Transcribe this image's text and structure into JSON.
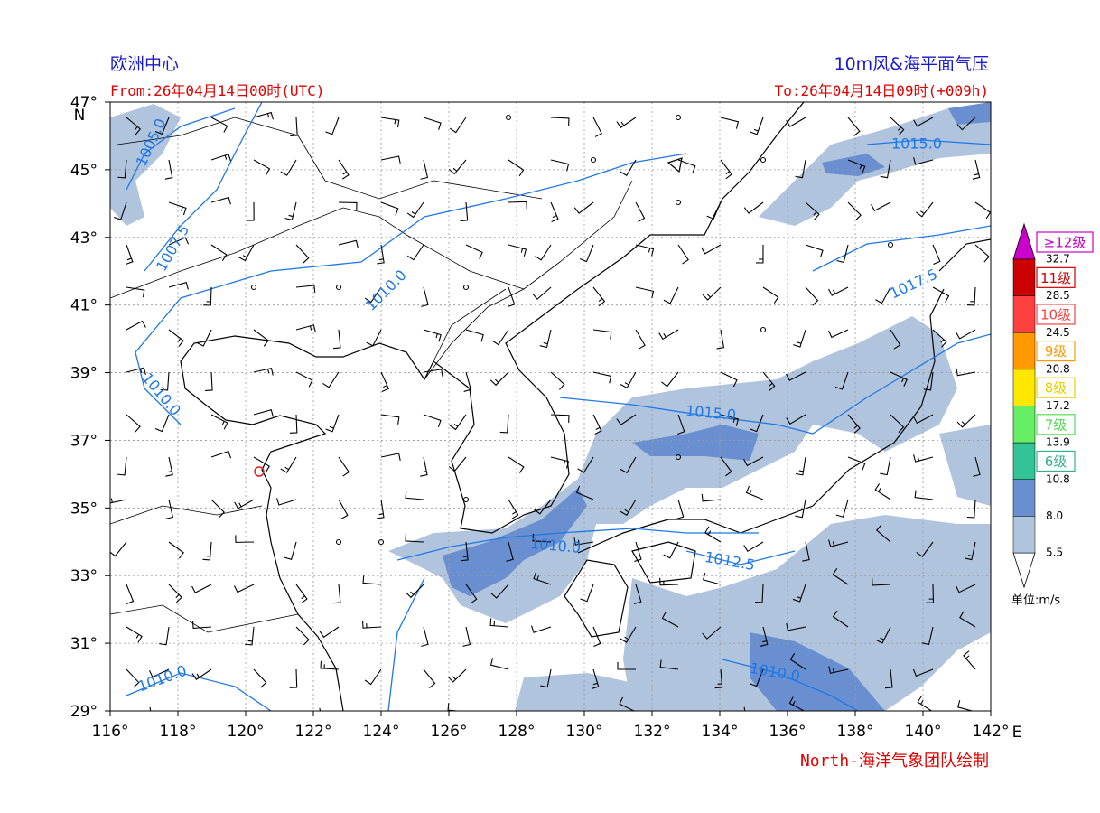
{
  "header": {
    "left_title": "欧洲中心",
    "right_title": "10m风&海平面气压",
    "from": "From:26年04月14日00时(UTC)",
    "to": "To:26年04月14日09时(+009h)"
  },
  "axes": {
    "lat_labels": [
      "47°",
      "45°",
      "43°",
      "41°",
      "39°",
      "37°",
      "35°",
      "33°",
      "31°",
      "29°"
    ],
    "lat_unit": "N",
    "lon_labels": [
      "116°",
      "118°",
      "120°",
      "122°",
      "124°",
      "126°",
      "128°",
      "130°",
      "132°",
      "134°",
      "136°",
      "138°",
      "140°",
      "142°"
    ],
    "lon_unit": "E"
  },
  "contour_labels": [
    "1005.0",
    "1007.5",
    "1010.0",
    "1010.0",
    "1015.0",
    "1017.5",
    "1015.0",
    "1010.0",
    "1012.5",
    "1010.0",
    "1010.0"
  ],
  "colorbar": {
    "level_labels": [
      "≥12级",
      "11级",
      "10级",
      "9级",
      "8级",
      "7级",
      "6级"
    ],
    "ticks": [
      "32.7",
      "28.5",
      "24.5",
      "20.8",
      "17.2",
      "13.9",
      "10.8",
      "8.0",
      "5.5"
    ],
    "unit": "单位:m/s"
  },
  "footer": "North-海洋气象团队绘制"
}
